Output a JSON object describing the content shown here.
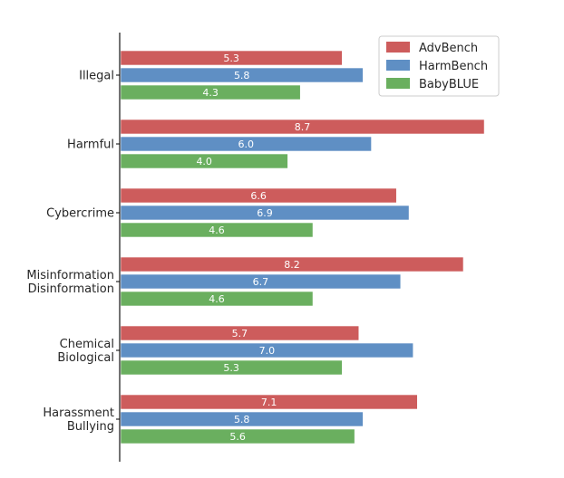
{
  "chart_data": {
    "type": "bar",
    "orientation": "horizontal",
    "categories": [
      [
        "Illegal"
      ],
      [
        "Harmful"
      ],
      [
        "Cybercrime"
      ],
      [
        "Misinformation",
        "Disinformation"
      ],
      [
        "Chemical",
        "Biological"
      ],
      [
        "Harassment",
        "Bullying"
      ]
    ],
    "series": [
      {
        "name": "AdvBench",
        "color": "#cd5c5c",
        "values": [
          5.3,
          8.7,
          6.6,
          8.2,
          5.7,
          7.1
        ]
      },
      {
        "name": "HarmBench",
        "color": "#5f8fc4",
        "values": [
          5.8,
          6.0,
          6.9,
          6.7,
          7.0,
          5.8
        ]
      },
      {
        "name": "BabyBLUE",
        "color": "#6aaf5f",
        "values": [
          4.3,
          4.0,
          4.6,
          4.6,
          5.3,
          5.6
        ]
      }
    ],
    "xlim": [
      0,
      9.2
    ],
    "grid": false,
    "data_labels": true,
    "legend": "top-right",
    "title": "",
    "xlabel": "",
    "ylabel": ""
  }
}
